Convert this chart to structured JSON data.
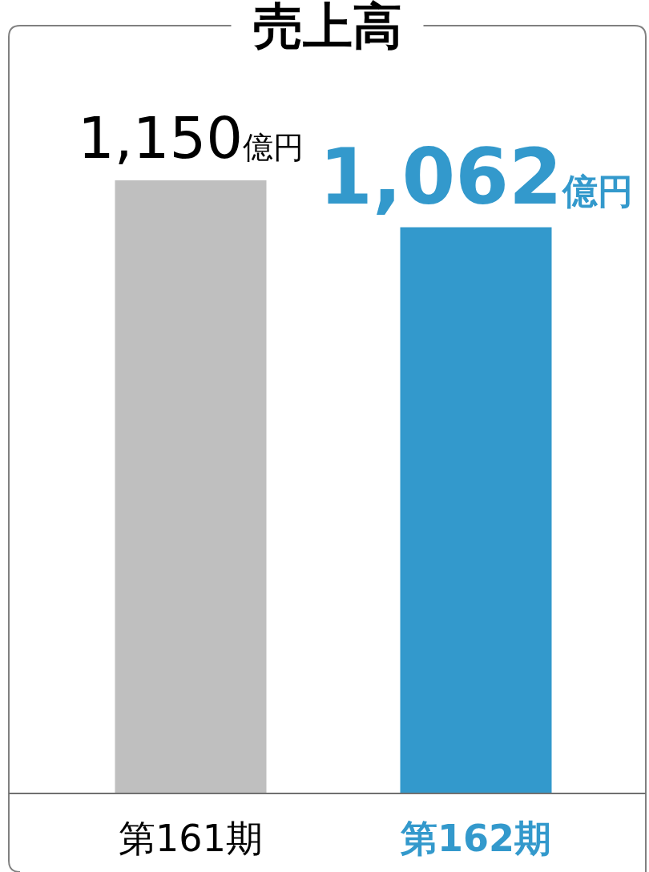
{
  "chart_data": {
    "type": "bar",
    "title": "売上高",
    "categories": [
      "第161期",
      "第162期"
    ],
    "values": [
      1150,
      1062
    ],
    "colors": [
      "#bfbfbf",
      "#3399cc"
    ],
    "value_labels": [
      "1,150億円",
      "1,062億円"
    ]
  }
}
